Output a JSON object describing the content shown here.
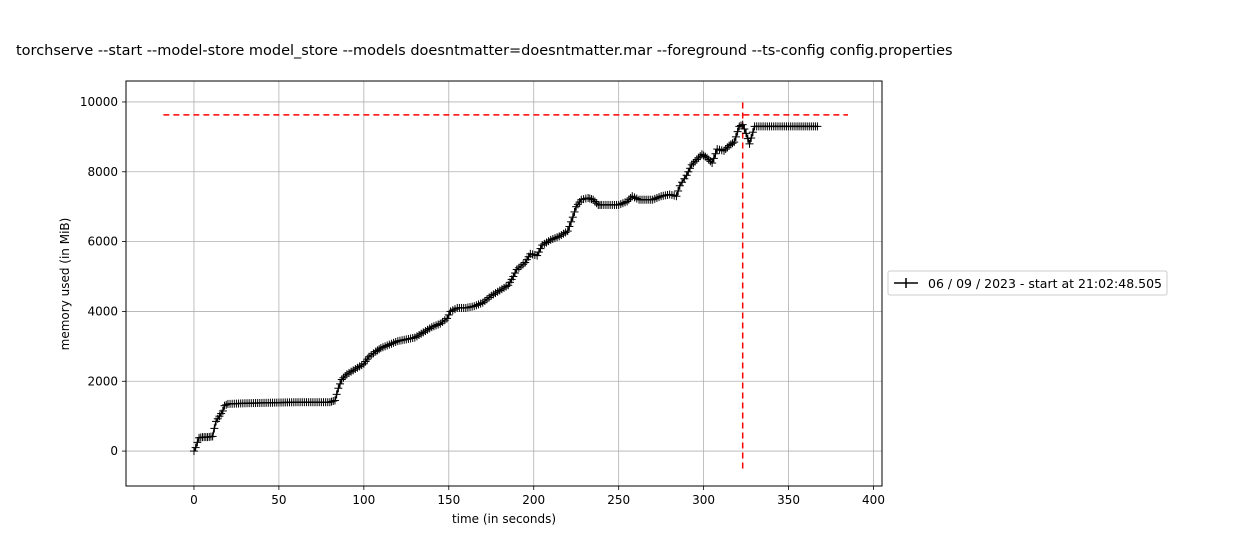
{
  "chart_data": {
    "type": "line",
    "title": "torchserve --start --model-store model_store --models doesntmatter=doesntmatter.mar --foreground --ts-config config.properties",
    "xlabel": "time (in seconds)",
    "ylabel": "memory used (in MiB)",
    "xlim": [
      -40,
      405
    ],
    "ylim": [
      -1000,
      10600
    ],
    "x_ticks": [
      0,
      50,
      100,
      150,
      200,
      250,
      300,
      350,
      400
    ],
    "y_ticks": [
      0,
      2000,
      4000,
      6000,
      8000,
      10000
    ],
    "grid": true,
    "legend_placement": "right-outside",
    "series": [
      {
        "name": "06 / 09 / 2023 - start at 21:02:48.505",
        "color": "#000000",
        "marker": "plus",
        "points": [
          [
            0,
            0
          ],
          [
            1,
            100
          ],
          [
            2,
            250
          ],
          [
            3,
            380
          ],
          [
            5,
            400
          ],
          [
            8,
            400
          ],
          [
            11,
            420
          ],
          [
            12,
            650
          ],
          [
            13,
            850
          ],
          [
            15,
            1000
          ],
          [
            17,
            1150
          ],
          [
            18,
            1300
          ],
          [
            20,
            1350
          ],
          [
            30,
            1370
          ],
          [
            40,
            1380
          ],
          [
            50,
            1390
          ],
          [
            60,
            1400
          ],
          [
            70,
            1400
          ],
          [
            80,
            1400
          ],
          [
            83,
            1450
          ],
          [
            85,
            1800
          ],
          [
            87,
            2050
          ],
          [
            90,
            2200
          ],
          [
            95,
            2350
          ],
          [
            100,
            2500
          ],
          [
            103,
            2700
          ],
          [
            107,
            2850
          ],
          [
            110,
            2950
          ],
          [
            115,
            3050
          ],
          [
            120,
            3150
          ],
          [
            125,
            3200
          ],
          [
            130,
            3250
          ],
          [
            135,
            3400
          ],
          [
            140,
            3550
          ],
          [
            145,
            3650
          ],
          [
            149,
            3800
          ],
          [
            151,
            4000
          ],
          [
            155,
            4100
          ],
          [
            160,
            4100
          ],
          [
            165,
            4150
          ],
          [
            170,
            4250
          ],
          [
            175,
            4450
          ],
          [
            180,
            4600
          ],
          [
            185,
            4750
          ],
          [
            188,
            5000
          ],
          [
            190,
            5200
          ],
          [
            195,
            5400
          ],
          [
            198,
            5650
          ],
          [
            202,
            5600
          ],
          [
            205,
            5900
          ],
          [
            210,
            6050
          ],
          [
            215,
            6150
          ],
          [
            220,
            6300
          ],
          [
            223,
            6700
          ],
          [
            225,
            7000
          ],
          [
            228,
            7200
          ],
          [
            232,
            7250
          ],
          [
            235,
            7200
          ],
          [
            238,
            7050
          ],
          [
            240,
            7050
          ],
          [
            250,
            7050
          ],
          [
            255,
            7150
          ],
          [
            258,
            7300
          ],
          [
            262,
            7200
          ],
          [
            270,
            7200
          ],
          [
            275,
            7300
          ],
          [
            280,
            7350
          ],
          [
            284,
            7300
          ],
          [
            286,
            7600
          ],
          [
            290,
            7900
          ],
          [
            293,
            8200
          ],
          [
            296,
            8350
          ],
          [
            299,
            8500
          ],
          [
            302,
            8400
          ],
          [
            305,
            8250
          ],
          [
            308,
            8650
          ],
          [
            312,
            8600
          ],
          [
            315,
            8750
          ],
          [
            318,
            8850
          ],
          [
            321,
            9300
          ],
          [
            323,
            9350
          ],
          [
            325,
            9100
          ],
          [
            327,
            8800
          ],
          [
            330,
            9300
          ],
          [
            335,
            9300
          ],
          [
            345,
            9300
          ],
          [
            355,
            9300
          ],
          [
            367,
            9300
          ]
        ]
      }
    ],
    "reference_lines": [
      {
        "orientation": "horizontal",
        "value": 9630,
        "from": -18,
        "to": 385,
        "color": "#ff0000",
        "style": "dashed"
      },
      {
        "orientation": "vertical",
        "value": 323,
        "from": -500,
        "to": 10100,
        "color": "#ff0000",
        "style": "dashed"
      }
    ]
  }
}
